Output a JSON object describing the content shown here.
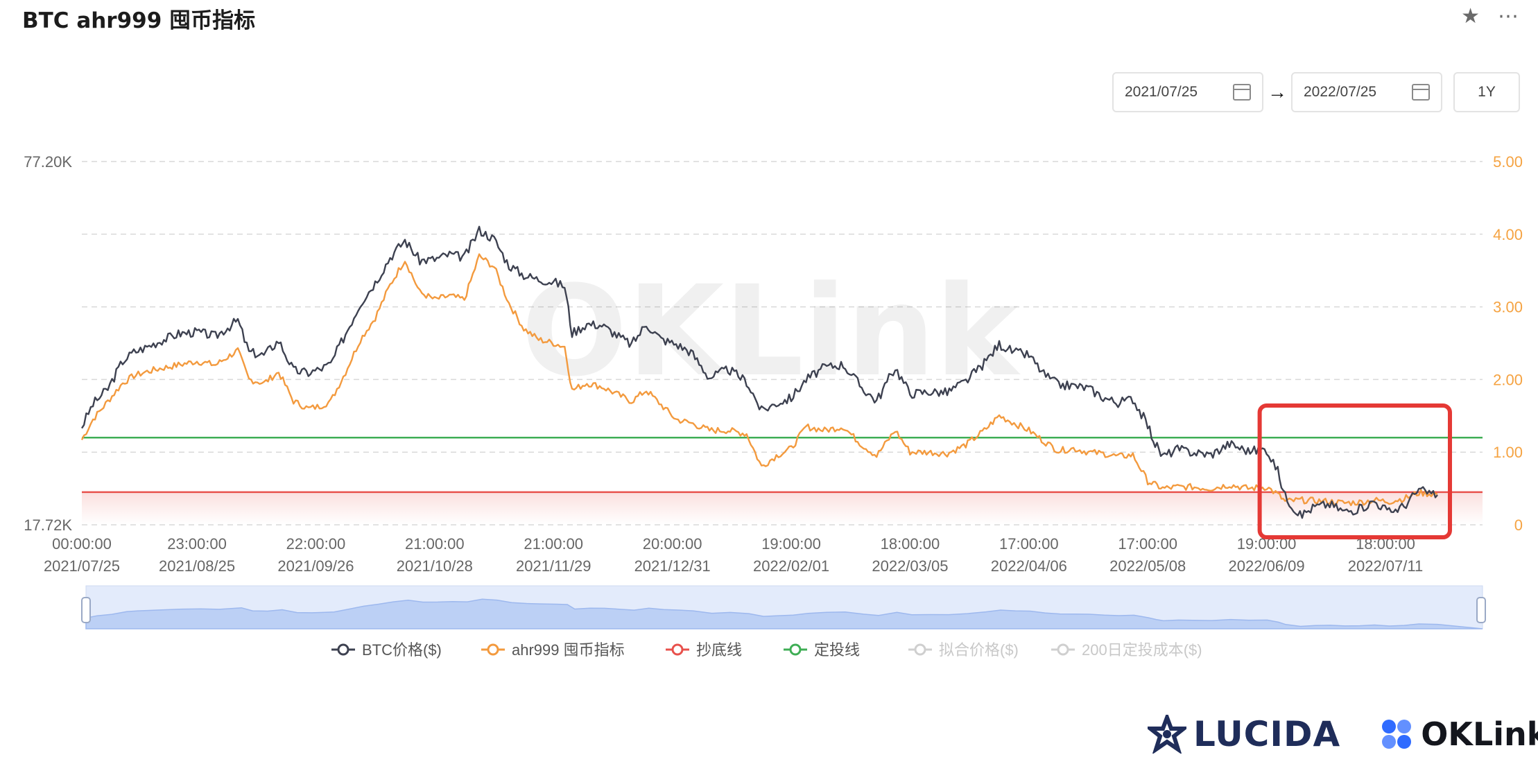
{
  "title": "BTC ahr999 囤币指标",
  "top_icons": [
    "star-icon",
    "more-icon"
  ],
  "date_range": {
    "start": "2021/07/25",
    "arrow": "→",
    "end": "2022/07/25",
    "period": "1Y"
  },
  "watermark": "OKLink",
  "logos": {
    "lucida": "LUCIDA",
    "oklink": "OKLink"
  },
  "colors": {
    "btc": "#3d4150",
    "ahr999": "#f39a3e",
    "bottom": "#e8514c",
    "dca": "#3fae55",
    "highlight": "#e53935",
    "grid": "#d9d9d9",
    "right_axis": "#f5a342"
  },
  "chart_data": {
    "type": "line",
    "y_left": {
      "min": 17.72,
      "max": 77.2,
      "unit": "K",
      "ticks": [
        "77.20K",
        "17.72K"
      ]
    },
    "y_right": {
      "min": 0,
      "max": 5,
      "ticks": [
        "5.00",
        "4.00",
        "3.00",
        "2.00",
        "1.00",
        "0"
      ]
    },
    "x_labels": [
      {
        "time": "00:00:00",
        "date": "2021/07/25"
      },
      {
        "time": "23:00:00",
        "date": "2021/08/25"
      },
      {
        "time": "22:00:00",
        "date": "2021/09/26"
      },
      {
        "time": "21:00:00",
        "date": "2021/10/28"
      },
      {
        "time": "21:00:00",
        "date": "2021/11/29"
      },
      {
        "time": "20:00:00",
        "date": "2021/12/31"
      },
      {
        "time": "19:00:00",
        "date": "2022/02/01"
      },
      {
        "time": "18:00:00",
        "date": "2022/03/05"
      },
      {
        "time": "17:00:00",
        "date": "2022/04/06"
      },
      {
        "time": "17:00:00",
        "date": "2022/05/08"
      },
      {
        "time": "19:00:00",
        "date": "2022/06/09"
      },
      {
        "time": "18:00:00",
        "date": "2022/07/11"
      }
    ],
    "series": [
      {
        "name": "BTC价格($)",
        "axis": "left",
        "color": "#3d4150",
        "style": "circle-line",
        "enabled": true,
        "x": [
          "2021/07/25",
          "2021/07/28",
          "2021/08/01",
          "2021/08/05",
          "2021/08/08",
          "2021/08/11",
          "2021/08/15",
          "2021/08/20",
          "2021/08/25",
          "2021/08/30",
          "2021/09/05",
          "2021/09/08",
          "2021/09/12",
          "2021/09/16",
          "2021/09/20",
          "2021/09/24",
          "2021/09/27",
          "2021/09/30",
          "2021/10/04",
          "2021/10/08",
          "2021/10/12",
          "2021/10/16",
          "2021/10/20",
          "2021/10/24",
          "2021/10/28",
          "2021/11/01",
          "2021/11/05",
          "2021/11/09",
          "2021/11/13",
          "2021/11/17",
          "2021/11/21",
          "2021/11/25",
          "2021/11/29",
          "2021/12/02",
          "2021/12/04",
          "2021/12/08",
          "2021/12/12",
          "2021/12/16",
          "2021/12/20",
          "2021/12/24",
          "2021/12/28",
          "2022/01/01",
          "2022/01/05",
          "2022/01/10",
          "2022/01/15",
          "2022/01/20",
          "2022/01/24",
          "2022/01/28",
          "2022/02/01",
          "2022/02/05",
          "2022/02/10",
          "2022/02/15",
          "2022/02/20",
          "2022/02/24",
          "2022/03/01",
          "2022/03/05",
          "2022/03/10",
          "2022/03/15",
          "2022/03/20",
          "2022/03/25",
          "2022/03/29",
          "2022/04/02",
          "2022/04/06",
          "2022/04/10",
          "2022/04/14",
          "2022/04/18",
          "2022/04/22",
          "2022/04/26",
          "2022/04/30",
          "2022/05/04",
          "2022/05/08",
          "2022/05/10",
          "2022/05/12",
          "2022/05/16",
          "2022/05/20",
          "2022/05/25",
          "2022/05/30",
          "2022/06/04",
          "2022/06/09",
          "2022/06/12",
          "2022/06/14",
          "2022/06/18",
          "2022/06/22",
          "2022/06/26",
          "2022/06/30",
          "2022/07/04",
          "2022/07/08",
          "2022/07/12",
          "2022/07/16",
          "2022/07/20",
          "2022/07/25"
        ],
        "values": [
          33.8,
          37.5,
          40.0,
          44.5,
          46.0,
          46.7,
          47.8,
          49.0,
          49.3,
          48.6,
          51.2,
          46.0,
          45.5,
          47.9,
          43.0,
          42.6,
          43.2,
          44.0,
          49.0,
          54.0,
          57.4,
          61.5,
          64.3,
          61.0,
          61.2,
          62.0,
          61.5,
          66.0,
          64.5,
          60.2,
          58.6,
          57.9,
          57.5,
          56.8,
          49.1,
          50.6,
          50.4,
          48.8,
          47.2,
          50.6,
          48.1,
          47.3,
          46.0,
          41.8,
          43.2,
          41.2,
          36.4,
          37.6,
          38.5,
          41.5,
          43.5,
          44.0,
          40.2,
          38.0,
          43.5,
          39.2,
          39.5,
          39.4,
          41.2,
          44.2,
          47.3,
          46.0,
          45.5,
          42.4,
          40.6,
          40.5,
          40.1,
          38.6,
          37.7,
          38.4,
          34.0,
          31.0,
          28.9,
          30.1,
          29.6,
          29.2,
          31.0,
          29.8,
          30.1,
          26.5,
          22.4,
          19.2,
          20.7,
          21.1,
          19.9,
          20.3,
          21.6,
          19.8,
          20.8,
          23.4,
          22.6
        ]
      },
      {
        "name": "ahr999 囤币指标",
        "axis": "right",
        "color": "#f39a3e",
        "style": "circle-line",
        "enabled": true,
        "x": [
          "2021/07/25",
          "2021/07/28",
          "2021/08/01",
          "2021/08/05",
          "2021/08/08",
          "2021/08/11",
          "2021/08/15",
          "2021/08/20",
          "2021/08/25",
          "2021/08/30",
          "2021/09/05",
          "2021/09/08",
          "2021/09/12",
          "2021/09/16",
          "2021/09/20",
          "2021/09/24",
          "2021/09/27",
          "2021/09/30",
          "2021/10/04",
          "2021/10/08",
          "2021/10/12",
          "2021/10/16",
          "2021/10/20",
          "2021/10/24",
          "2021/10/28",
          "2021/11/01",
          "2021/11/05",
          "2021/11/09",
          "2021/11/13",
          "2021/11/17",
          "2021/11/21",
          "2021/11/25",
          "2021/11/29",
          "2021/12/02",
          "2021/12/04",
          "2021/12/08",
          "2021/12/12",
          "2021/12/16",
          "2021/12/20",
          "2021/12/24",
          "2021/12/28",
          "2022/01/01",
          "2022/01/05",
          "2022/01/10",
          "2022/01/15",
          "2022/01/20",
          "2022/01/24",
          "2022/01/28",
          "2022/02/01",
          "2022/02/05",
          "2022/02/10",
          "2022/02/15",
          "2022/02/20",
          "2022/02/24",
          "2022/03/01",
          "2022/03/05",
          "2022/03/10",
          "2022/03/15",
          "2022/03/20",
          "2022/03/25",
          "2022/03/29",
          "2022/04/02",
          "2022/04/06",
          "2022/04/10",
          "2022/04/14",
          "2022/04/18",
          "2022/04/22",
          "2022/04/26",
          "2022/04/30",
          "2022/05/04",
          "2022/05/08",
          "2022/05/10",
          "2022/05/12",
          "2022/05/16",
          "2022/05/20",
          "2022/05/25",
          "2022/05/30",
          "2022/06/04",
          "2022/06/09",
          "2022/06/12",
          "2022/06/14",
          "2022/06/18",
          "2022/06/22",
          "2022/06/26",
          "2022/06/30",
          "2022/07/04",
          "2022/07/08",
          "2022/07/12",
          "2022/07/16",
          "2022/07/20",
          "2022/07/25"
        ],
        "values": [
          1.17,
          1.45,
          1.7,
          1.95,
          2.05,
          2.1,
          2.15,
          2.2,
          2.25,
          2.2,
          2.4,
          2.0,
          1.95,
          2.1,
          1.7,
          1.6,
          1.63,
          1.7,
          2.1,
          2.55,
          2.85,
          3.3,
          3.65,
          3.2,
          3.1,
          3.15,
          3.1,
          3.7,
          3.55,
          3.05,
          2.7,
          2.55,
          2.5,
          2.45,
          1.85,
          1.95,
          1.9,
          1.8,
          1.7,
          1.85,
          1.65,
          1.45,
          1.4,
          1.3,
          1.3,
          1.25,
          0.8,
          0.95,
          1.05,
          1.35,
          1.3,
          1.35,
          1.1,
          0.95,
          1.3,
          1.0,
          1.0,
          0.98,
          1.1,
          1.3,
          1.5,
          1.4,
          1.3,
          1.15,
          1.02,
          1.05,
          1.0,
          0.98,
          0.94,
          0.96,
          0.6,
          0.55,
          0.5,
          0.52,
          0.52,
          0.5,
          0.55,
          0.5,
          0.52,
          0.42,
          0.32,
          0.34,
          0.33,
          0.32,
          0.3,
          0.31,
          0.34,
          0.32,
          0.36,
          0.44,
          0.42
        ]
      },
      {
        "name": "抄底线",
        "axis": "right",
        "color": "#e8514c",
        "style": "circle-line",
        "enabled": true,
        "values": [
          0.45
        ]
      },
      {
        "name": "定投线",
        "axis": "right",
        "color": "#3fae55",
        "style": "circle-line",
        "enabled": true,
        "values": [
          1.2
        ]
      },
      {
        "name": "拟合价格($)",
        "axis": "left",
        "color": "#cfcfcf",
        "style": "circle-line",
        "enabled": false,
        "values": []
      },
      {
        "name": "200日定投成本($)",
        "axis": "left",
        "color": "#cfcfcf",
        "style": "circle-line",
        "enabled": false,
        "values": []
      }
    ],
    "grid": true,
    "legend": "bottom",
    "highlight": {
      "from": "2022/06/09",
      "to": "2022/07/25"
    }
  }
}
